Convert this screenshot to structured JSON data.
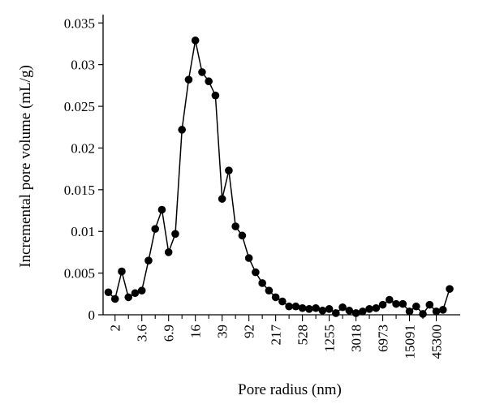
{
  "chart_data": {
    "type": "line",
    "markers": "filled-circle",
    "color": "#000000",
    "xlabel": "Pore radius (nm)",
    "ylabel": "Incremental pore volume (mL/g)",
    "ylim": [
      0,
      0.036
    ],
    "x_tick_labels": [
      "2",
      "3.6",
      "6.9",
      "16",
      "39",
      "92",
      "217",
      "528",
      "1255",
      "3018",
      "6973",
      "15091",
      "45300"
    ],
    "y_ticks": [
      0,
      0.005,
      0.01,
      0.015,
      0.02,
      0.025,
      0.03,
      0.035
    ],
    "y_tick_labels": [
      "0",
      "0.005",
      "0.01",
      "0.015",
      "0.02",
      "0.025",
      "0.03",
      "0.035"
    ],
    "series": [
      {
        "values": [
          0.0027,
          0.0019,
          0.0052,
          0.0021,
          0.0026,
          0.0029,
          0.0065,
          0.0103,
          0.0126,
          0.0075,
          0.0097,
          0.0222,
          0.0282,
          0.0329,
          0.0291,
          0.028,
          0.0263,
          0.0139,
          0.0173,
          0.0106,
          0.0095,
          0.0068,
          0.0051,
          0.0038,
          0.0029,
          0.0021,
          0.0016,
          0.001,
          0.001,
          0.0008,
          0.0007,
          0.0008,
          0.0005,
          0.0007,
          0.0002,
          0.0009,
          0.0005,
          0.0002,
          0.0004,
          0.0007,
          0.0008,
          0.0012,
          0.0018,
          0.0013,
          0.0013,
          0.0004,
          0.001,
          0.0001,
          0.0012,
          0.0004,
          0.0006,
          0.0031
        ]
      }
    ]
  }
}
